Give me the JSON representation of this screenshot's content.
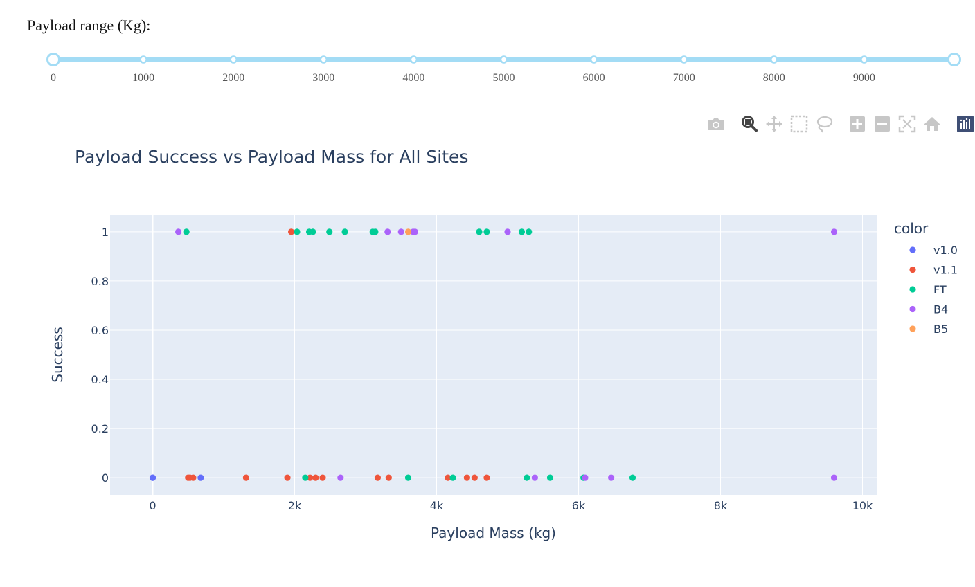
{
  "slider": {
    "label": "Payload range (Kg):",
    "min": 0,
    "max": 10000,
    "value": [
      0,
      10000
    ],
    "marks": [
      "0",
      "1000",
      "2000",
      "3000",
      "4000",
      "5000",
      "6000",
      "7000",
      "8000",
      "9000"
    ],
    "mark_values": [
      0,
      1000,
      2000,
      3000,
      4000,
      5000,
      6000,
      7000,
      8000,
      9000
    ],
    "track_color": "#A3DCF5"
  },
  "toolbar": {
    "icons": [
      "camera-icon",
      "zoom-icon",
      "pan-icon",
      "box-select-icon",
      "lasso-select-icon",
      "zoom-in-icon",
      "zoom-out-icon",
      "autoscale-icon",
      "reset-axes-icon",
      "plotly-logo-icon"
    ],
    "active": "zoom-icon"
  },
  "chart_data": {
    "type": "scatter",
    "title": "Payload Success vs Payload Mass for All Sites",
    "xlabel": "Payload Mass (kg)",
    "ylabel": "Success",
    "xlim": [
      -600,
      10200
    ],
    "ylim": [
      -0.07,
      1.07
    ],
    "x_ticks": [
      0,
      2000,
      4000,
      6000,
      8000,
      10000
    ],
    "x_tick_labels": [
      "0",
      "2k",
      "4k",
      "6k",
      "8k",
      "10k"
    ],
    "y_ticks": [
      0,
      0.2,
      0.4,
      0.6,
      0.8,
      1
    ],
    "y_tick_labels": [
      "0",
      "0.2",
      "0.4",
      "0.6",
      "0.8",
      "1"
    ],
    "grid": true,
    "legend_title": "color",
    "legend_position": "right",
    "series": [
      {
        "name": "v1.0",
        "color": "#636EFA",
        "x": [
          0,
          0,
          677
        ],
        "y": [
          0,
          0,
          0
        ]
      },
      {
        "name": "v1.1",
        "color": "#EF553B",
        "x": [
          500,
          525,
          570,
          1316,
          1898,
          1952,
          2216,
          2296,
          2395,
          3170,
          3325,
          4159,
          4428,
          4535,
          4707
        ],
        "y": [
          0,
          0,
          0,
          0,
          0,
          1,
          0,
          0,
          0,
          0,
          0,
          0,
          0,
          0,
          0
        ]
      },
      {
        "name": "FT",
        "color": "#00CC96",
        "x": [
          475,
          2034,
          2150,
          2205,
          2257,
          2490,
          2708,
          3100,
          3136,
          3600,
          4230,
          4600,
          4707,
          5200,
          5271,
          5300,
          5600,
          6070,
          6761
        ],
        "y": [
          1,
          1,
          0,
          1,
          1,
          1,
          1,
          1,
          1,
          0,
          0,
          1,
          1,
          1,
          0,
          1,
          0,
          0,
          0
        ]
      },
      {
        "name": "B4",
        "color": "#AB63FA",
        "x": [
          362,
          2647,
          3310,
          3500,
          3670,
          3696,
          5000,
          5384,
          6092,
          6460,
          9600,
          9600
        ],
        "y": [
          1,
          0,
          1,
          1,
          1,
          1,
          1,
          0,
          0,
          0,
          1,
          0
        ]
      },
      {
        "name": "B5",
        "color": "#FFA15A",
        "x": [
          3600
        ],
        "y": [
          1
        ]
      }
    ]
  }
}
